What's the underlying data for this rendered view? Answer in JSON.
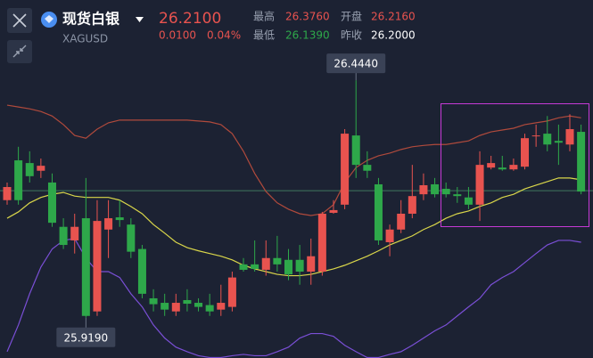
{
  "header": {
    "title": "现货白银",
    "symbol": "XAGUSD",
    "price": "26.2100",
    "change": "0.0100",
    "change_pct": "0.04%",
    "stats": [
      {
        "label": "最高",
        "value": "26.3760"
      },
      {
        "label": "开盘",
        "value": "26.2160"
      },
      {
        "label": "最低",
        "value": "26.1390"
      },
      {
        "label": "昨收",
        "value": "26.2000"
      }
    ]
  },
  "chart_data": {
    "type": "candlestick",
    "ylim": [
      25.83,
      26.527
    ],
    "reference_line": 26.2,
    "reference_color": "#3f7a5e",
    "up_color": "#e8534f",
    "down_color": "#2ea84a",
    "open": [
      26.179,
      26.267,
      26.261,
      26.244,
      26.218,
      26.12,
      26.09,
      26.139,
      25.933,
      26.114,
      26.141,
      26.125,
      26.071,
      25.962,
      25.952,
      25.933,
      25.958,
      25.952,
      25.947,
      25.937,
      25.943,
      26.037,
      26.037,
      26.025,
      26.051,
      26.047,
      26.047,
      26.021,
      26.021,
      26.151,
      26.169,
      26.322,
      26.257,
      26.214,
      26.086,
      26.114,
      26.149,
      26.192,
      26.214,
      26.204,
      26.192,
      26.185,
      26.169,
      26.251,
      26.251,
      26.247,
      26.253,
      26.322,
      26.326,
      26.31,
      26.302,
      26.33
    ],
    "high": [
      26.218,
      26.297,
      26.287,
      26.271,
      26.238,
      26.139,
      26.149,
      26.228,
      26.179,
      26.179,
      26.179,
      26.139,
      26.08,
      25.982,
      25.972,
      25.972,
      25.982,
      25.962,
      25.972,
      25.992,
      26.021,
      26.051,
      26.09,
      26.09,
      26.1,
      26.071,
      26.08,
      26.094,
      26.153,
      26.179,
      26.336,
      26.444,
      26.287,
      26.228,
      26.125,
      26.179,
      26.257,
      26.238,
      26.228,
      26.218,
      26.208,
      26.208,
      26.287,
      26.277,
      26.277,
      26.271,
      26.326,
      26.346,
      26.365,
      26.346,
      26.369,
      26.346
    ],
    "low": [
      26.169,
      26.169,
      26.218,
      26.228,
      26.12,
      26.071,
      26.061,
      25.919,
      25.923,
      26.051,
      26.12,
      26.051,
      25.962,
      25.933,
      25.923,
      25.923,
      25.933,
      25.933,
      25.923,
      25.923,
      25.933,
      26.021,
      26.021,
      26.012,
      26.021,
      26.002,
      25.992,
      25.992,
      26.012,
      26.149,
      26.159,
      26.228,
      26.228,
      26.08,
      26.055,
      26.106,
      26.139,
      26.179,
      26.185,
      26.185,
      26.173,
      26.159,
      26.133,
      26.247,
      26.244,
      26.244,
      26.247,
      26.297,
      26.287,
      26.257,
      26.287,
      26.192
    ],
    "close": [
      26.208,
      26.179,
      26.232,
      26.255,
      26.129,
      26.08,
      26.12,
      25.923,
      26.133,
      26.139,
      26.135,
      26.065,
      25.972,
      25.949,
      25.937,
      25.952,
      25.95,
      25.943,
      25.933,
      25.952,
      26.008,
      26.025,
      26.027,
      26.051,
      26.037,
      26.015,
      26.021,
      26.055,
      26.149,
      26.157,
      26.326,
      26.257,
      26.244,
      26.09,
      26.114,
      26.149,
      26.188,
      26.212,
      26.192,
      26.192,
      26.188,
      26.169,
      26.257,
      26.261,
      26.247,
      26.257,
      26.316,
      26.322,
      26.302,
      26.306,
      26.336,
      26.198
    ],
    "lines": [
      {
        "color": "#b04a3c",
        "values": [
          26.389,
          26.385,
          26.381,
          26.375,
          26.365,
          26.346,
          26.322,
          26.316,
          26.336,
          26.35,
          26.356,
          26.356,
          26.356,
          26.356,
          26.356,
          26.356,
          26.356,
          26.354,
          26.352,
          26.346,
          26.326,
          26.287,
          26.238,
          26.198,
          26.173,
          26.159,
          26.149,
          26.145,
          26.149,
          26.169,
          26.218,
          26.251,
          26.267,
          26.277,
          26.283,
          26.291,
          26.297,
          26.3,
          26.302,
          26.302,
          26.306,
          26.31,
          26.322,
          26.33,
          26.334,
          26.338,
          26.346,
          26.35,
          26.354,
          26.361,
          26.365,
          26.361
        ]
      },
      {
        "color": "#d9d64a",
        "values": [
          26.139,
          26.153,
          26.173,
          26.185,
          26.192,
          26.196,
          26.188,
          26.185,
          26.185,
          26.185,
          26.179,
          26.165,
          26.149,
          26.125,
          26.106,
          26.086,
          26.074,
          26.067,
          26.061,
          26.055,
          26.047,
          26.035,
          26.027,
          26.021,
          26.015,
          26.012,
          26.012,
          26.015,
          26.021,
          26.027,
          26.035,
          26.045,
          26.055,
          26.067,
          26.08,
          26.09,
          26.1,
          26.114,
          26.125,
          26.139,
          26.149,
          26.155,
          26.165,
          26.173,
          26.185,
          26.192,
          26.204,
          26.212,
          26.22,
          26.228,
          26.228,
          26.224
        ]
      },
      {
        "color": "#7a4fd6",
        "values": [
          25.844,
          25.903,
          25.972,
          26.031,
          26.071,
          26.09,
          26.094,
          26.051,
          26.021,
          26.021,
          26.008,
          25.972,
          25.943,
          25.903,
          25.874,
          25.854,
          25.844,
          25.835,
          25.831,
          25.831,
          25.835,
          25.838,
          25.835,
          25.835,
          25.844,
          25.854,
          25.874,
          25.884,
          25.884,
          25.878,
          25.858,
          25.844,
          25.831,
          25.831,
          25.838,
          25.844,
          25.858,
          25.874,
          25.89,
          25.903,
          25.923,
          25.943,
          25.962,
          25.992,
          26.008,
          26.021,
          26.041,
          26.061,
          26.08,
          26.09,
          26.09,
          26.086
        ]
      }
    ],
    "max_label": "26.4440",
    "min_label": "25.9190"
  }
}
